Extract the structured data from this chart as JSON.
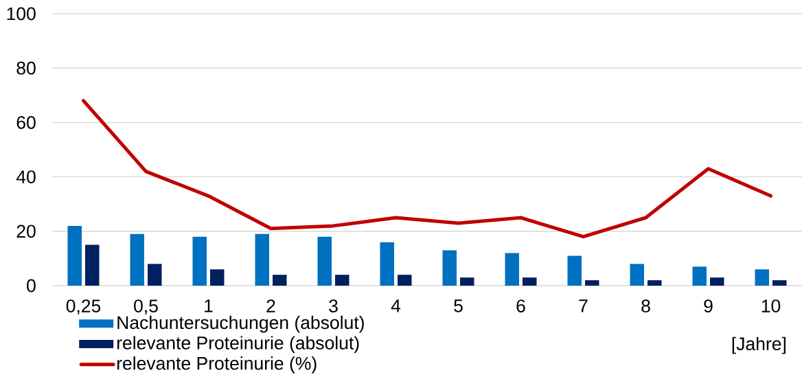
{
  "chart_data": {
    "type": "bar",
    "xlabel": "[Jahre]",
    "categories": [
      "0,25",
      "0,5",
      "1",
      "2",
      "3",
      "4",
      "5",
      "6",
      "7",
      "8",
      "9",
      "10"
    ],
    "ylim": [
      0,
      100
    ],
    "yticks": [
      0,
      20,
      40,
      60,
      80,
      100
    ],
    "grid": "y",
    "legend": "bottom left",
    "series": [
      {
        "name": "Nachuntersuchungen (absolut)",
        "color": "#0070c0",
        "values": [
          22,
          19,
          18,
          19,
          18,
          16,
          13,
          12,
          11,
          8,
          7,
          6
        ]
      },
      {
        "name": "relevante Proteinurie (absolut)",
        "color": "#002060",
        "values": [
          15,
          8,
          6,
          4,
          4,
          4,
          3,
          3,
          2,
          2,
          3,
          2
        ]
      },
      {
        "name": "relevante Proteinurie (%)",
        "type": "line",
        "color": "#c00000",
        "values": [
          68,
          42,
          33,
          21,
          22,
          25,
          23,
          25,
          18,
          25,
          43,
          33
        ]
      }
    ]
  }
}
